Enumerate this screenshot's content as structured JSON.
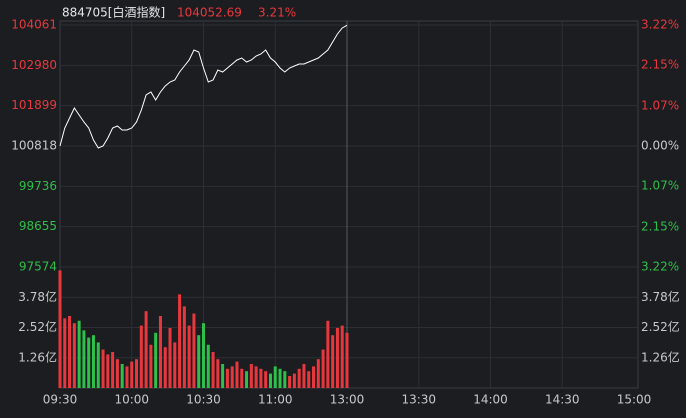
{
  "chart_data": [
    {
      "type": "line",
      "title": "884705[白酒指数]",
      "last_price": 104052.69,
      "change_pct": {
        "value": 3.21,
        "label": "3.21%"
      },
      "colors": {
        "up": "#e8383d",
        "down": "#2fbf4a",
        "flat": "#c8c8c8"
      },
      "x": [
        0,
        2,
        4,
        6,
        8,
        10,
        12,
        14,
        16,
        18,
        20,
        22,
        24,
        26,
        28,
        30,
        32,
        34,
        36,
        38,
        40,
        42,
        44,
        46,
        48,
        50,
        52,
        54,
        56,
        58,
        60,
        62,
        64,
        66,
        68,
        70,
        72,
        74,
        76,
        78,
        80,
        82,
        84,
        86,
        88,
        90,
        92,
        94,
        96,
        98,
        100,
        102,
        104,
        106,
        108,
        110,
        112,
        114,
        116,
        118,
        120
      ],
      "xlim": [
        0,
        240
      ],
      "xticks": [
        {
          "value": 0,
          "label": "09:30"
        },
        {
          "value": 30,
          "label": "10:00"
        },
        {
          "value": 60,
          "label": "10:30"
        },
        {
          "value": 90,
          "label": "11:00"
        },
        {
          "value": 120,
          "label": "13:00"
        },
        {
          "value": 150,
          "label": "13:30"
        },
        {
          "value": 180,
          "label": "14:00"
        },
        {
          "value": 210,
          "label": "14:30"
        },
        {
          "value": 240,
          "label": "15:00"
        }
      ],
      "series": [
        {
          "color": "#ffffff",
          "values": [
            100818,
            101300,
            101568,
            101836,
            101648,
            101461,
            101300,
            100978,
            100764,
            100818,
            101032,
            101300,
            101354,
            101247,
            101247,
            101300,
            101461,
            101782,
            102185,
            102265,
            102051,
            102265,
            102426,
            102533,
            102587,
            102801,
            102962,
            103123,
            103391,
            103337,
            102908,
            102533,
            102587,
            102855,
            102801,
            102908,
            103016,
            103123,
            103176,
            103069,
            103123,
            103230,
            103284,
            103391,
            103176,
            103069,
            102908,
            102801,
            102908,
            102962,
            103016,
            103016,
            103069,
            103123,
            103176,
            103284,
            103391,
            103605,
            103820,
            103981,
            104052.69
          ]
        }
      ],
      "ylim": [
        97574,
        104061
      ],
      "yticks": [
        104061,
        102980,
        101899,
        100818,
        99736,
        98655,
        97574
      ],
      "y2lim": [
        -3.22,
        3.22
      ],
      "y2ticks": [
        {
          "value": 3.22,
          "label": "3.22%"
        },
        {
          "value": 2.15,
          "label": "2.15%"
        },
        {
          "value": 1.07,
          "label": "1.07%"
        },
        {
          "value": 0,
          "label": "0.00%"
        },
        {
          "value": -1.07,
          "label": "1.07%"
        },
        {
          "value": -2.15,
          "label": "2.15%"
        },
        {
          "value": -3.22,
          "label": "3.22%"
        }
      ]
    },
    {
      "type": "bar",
      "values": [
        4.9,
        2.9,
        3.0,
        2.7,
        2.8,
        2.4,
        2.1,
        2.2,
        1.9,
        1.6,
        1.4,
        1.5,
        1.2,
        1.0,
        0.9,
        1.1,
        1.2,
        2.6,
        3.2,
        1.8,
        2.3,
        3.0,
        1.7,
        2.5,
        1.9,
        3.9,
        3.4,
        2.6,
        3.1,
        2.2,
        2.7,
        1.8,
        1.5,
        1.2,
        1.0,
        0.8,
        0.9,
        1.1,
        0.8,
        0.7,
        1.0,
        0.9,
        0.8,
        0.7,
        0.6,
        0.9,
        0.8,
        0.7,
        0.5,
        0.6,
        0.8,
        1.0,
        0.7,
        0.9,
        1.2,
        1.6,
        2.8,
        2.2,
        2.5,
        2.6,
        2.3
      ],
      "ylim": [
        0,
        5.04
      ],
      "yticks": [
        {
          "value": 3.78,
          "label": "3.78亿"
        },
        {
          "value": 2.52,
          "label": "2.52亿"
        },
        {
          "value": 1.26,
          "label": "1.26亿"
        }
      ]
    }
  ]
}
